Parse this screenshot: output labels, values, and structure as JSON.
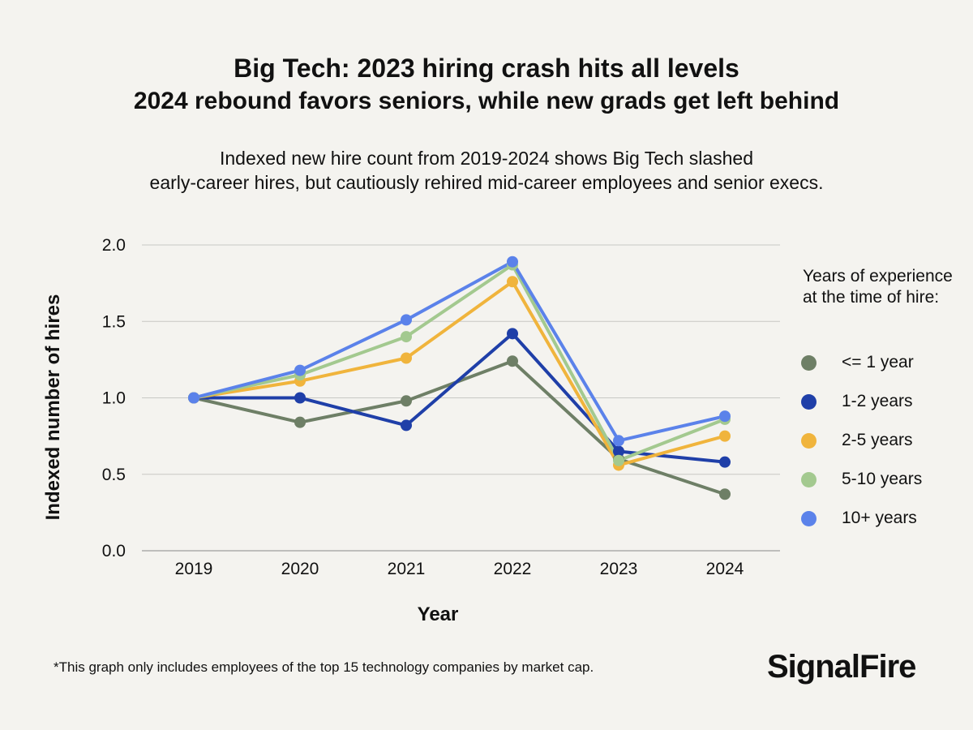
{
  "title": "Big Tech: 2023 hiring crash hits all levels",
  "subtitle": "2024 rebound favors seniors, while new grads get left behind",
  "description_line1": "Indexed new hire count from 2019-2024 shows Big Tech slashed",
  "description_line2": "early-career hires, but cautiously rehired mid-career employees and senior execs.",
  "footnote": "*This graph only includes employees of the top 15 technology companies by market cap.",
  "logo": "SignalFire",
  "chart_data": {
    "type": "line",
    "title": "Big Tech: 2023 hiring crash hits all levels",
    "xlabel": "Year",
    "ylabel": "Indexed number of hires",
    "ylim": [
      0,
      2
    ],
    "yticks": [
      "0.0",
      "0.5",
      "1.0",
      "1.5",
      "2.0"
    ],
    "categories": [
      "2019",
      "2020",
      "2021",
      "2022",
      "2023",
      "2024"
    ],
    "grid": "horizontal",
    "legend_title": "Years of experience at the time of hire:",
    "legend_placement": "right",
    "series": [
      {
        "name": "<= 1 year",
        "color": "#6e7f66",
        "values": [
          1.0,
          0.84,
          0.98,
          1.24,
          0.6,
          0.37
        ]
      },
      {
        "name": "1-2 years",
        "color": "#1f3fa8",
        "values": [
          1.0,
          1.0,
          0.82,
          1.42,
          0.65,
          0.58
        ]
      },
      {
        "name": "2-5 years",
        "color": "#f0b43c",
        "values": [
          1.0,
          1.11,
          1.26,
          1.76,
          0.56,
          0.75
        ]
      },
      {
        "name": "5-10 years",
        "color": "#a3c98f",
        "values": [
          1.0,
          1.15,
          1.4,
          1.87,
          0.59,
          0.86
        ]
      },
      {
        "name": "10+ years",
        "color": "#5b82ea",
        "values": [
          1.0,
          1.18,
          1.51,
          1.89,
          0.72,
          0.88
        ]
      }
    ]
  }
}
